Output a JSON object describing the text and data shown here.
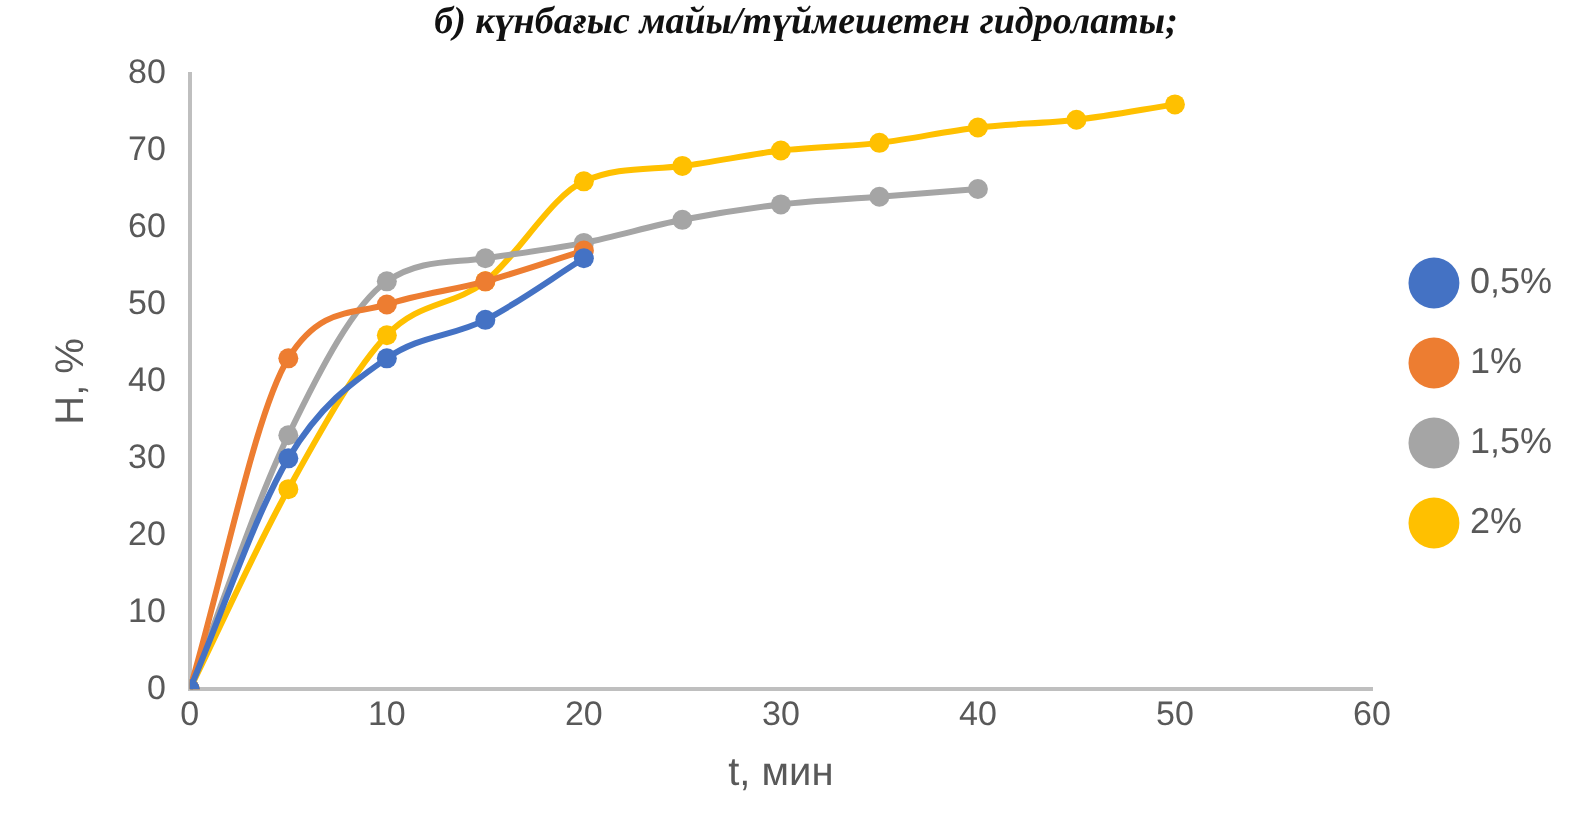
{
  "chart_data": {
    "type": "line",
    "title": "б) күнбағыс майы/түймешетен гидролаты;",
    "xlabel": "t, мин",
    "ylabel": "H, %",
    "xlim": [
      0,
      60
    ],
    "xticks": [
      0,
      10,
      20,
      30,
      40,
      50,
      60
    ],
    "ylim": [
      0,
      80
    ],
    "yticks": [
      0,
      10,
      20,
      30,
      40,
      50,
      60,
      70,
      80
    ],
    "series": [
      {
        "name": "0,5%",
        "color": "#4472c4",
        "x": [
          0,
          5,
          10,
          15,
          20
        ],
        "values": [
          0,
          30,
          43,
          48,
          56
        ]
      },
      {
        "name": "1%",
        "color": "#ed7d31",
        "x": [
          0,
          5,
          10,
          15,
          20
        ],
        "values": [
          0,
          43,
          50,
          53,
          57
        ]
      },
      {
        "name": "1,5%",
        "color": "#a5a5a5",
        "x": [
          0,
          5,
          10,
          15,
          20,
          25,
          30,
          35,
          40
        ],
        "values": [
          0,
          33,
          53,
          56,
          58,
          61,
          63,
          64,
          65
        ]
      },
      {
        "name": "2%",
        "color": "#ffc000",
        "x": [
          0,
          5,
          10,
          15,
          20,
          25,
          30,
          35,
          40,
          45,
          50
        ],
        "values": [
          0,
          26,
          46,
          53,
          66,
          68,
          70,
          71,
          73,
          74,
          76
        ]
      }
    ],
    "marker": "circle",
    "line_style": "solid",
    "grid": false,
    "legend": "right"
  }
}
